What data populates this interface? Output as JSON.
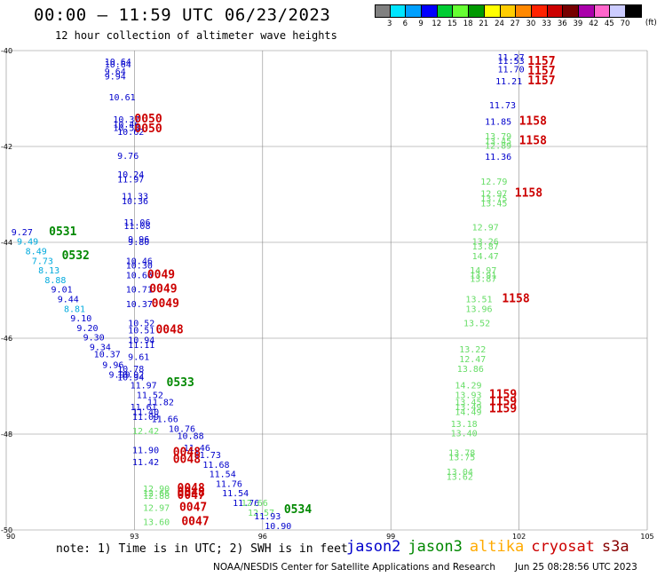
{
  "title": "00:00 – 11:59 UTC 06/23/2023",
  "subtitle": "12 hour collection of altimeter wave heights",
  "legend": {
    "unit": "(ft)",
    "colors": [
      "#808080",
      "#00e5ff",
      "#00a0ff",
      "#0000ff",
      "#00cc33",
      "#66ff33",
      "#009900",
      "#ffff00",
      "#ffcc00",
      "#ff8800",
      "#ff2200",
      "#cc0000",
      "#770000",
      "#aa00aa",
      "#ff66cc",
      "#ccccff",
      "#000000"
    ],
    "labels": [
      "3",
      "6",
      "9",
      "12",
      "15",
      "18",
      "21",
      "24",
      "27",
      "30",
      "33",
      "36",
      "39",
      "42",
      "45",
      "70"
    ]
  },
  "axes": {
    "x_ticks": [
      "90",
      "93",
      "96",
      "99",
      "102",
      "105"
    ],
    "y_ticks": [
      "-40",
      "-42",
      "-44",
      "-46",
      "-48",
      "-50"
    ]
  },
  "colors": {
    "jason2": "#0000cc",
    "jason3": "#008800",
    "altika": "#ffaa00",
    "cryosat": "#cc0000",
    "s3a": "#880000",
    "j3_light": "#66dd66",
    "cyan": "#00aadd",
    "grid": "#888888"
  },
  "note": "note: 1) Time is in UTC; 2) SWH is in feet",
  "satellites": [
    {
      "name": "jason2",
      "color": "#0000cc"
    },
    {
      "name": "jason3",
      "color": "#008800"
    },
    {
      "name": "altika",
      "color": "#ffaa00"
    },
    {
      "name": "cryosat",
      "color": "#cc0000"
    },
    {
      "name": "s3a",
      "color": "#880000"
    }
  ],
  "footer": "NOAA/NESDIS Center for Satellite Applications and Research",
  "footer_date": "Jun 25 08:28:56 UTC 2023",
  "map_data": {
    "lon_range": [
      90,
      105
    ],
    "lat_range": [
      -50,
      -40
    ],
    "points": [
      {
        "lon": 92.3,
        "lat": -40.3,
        "text": "10.64",
        "c": "#0000cc"
      },
      {
        "lon": 92.3,
        "lat": -40.35,
        "text": "10.64",
        "c": "#0000cc"
      },
      {
        "lon": 92.3,
        "lat": -40.5,
        "text": "9.64",
        "c": "#0000cc"
      },
      {
        "lon": 92.3,
        "lat": -40.6,
        "text": "9.94",
        "c": "#0000cc"
      },
      {
        "lon": 92.4,
        "lat": -41.04,
        "text": "10.61",
        "c": "#0000cc"
      },
      {
        "lon": 92.5,
        "lat": -41.5,
        "text": "10.37",
        "c": "#0000cc"
      },
      {
        "lon": 92.5,
        "lat": -41.6,
        "text": "10.46",
        "c": "#0000cc"
      },
      {
        "lon": 92.5,
        "lat": -41.68,
        "text": "10.55",
        "c": "#0000cc"
      },
      {
        "lon": 92.6,
        "lat": -41.76,
        "text": "10.62",
        "c": "#0000cc"
      },
      {
        "lon": 93.0,
        "lat": -41.5,
        "text": "0050",
        "c": "#cc0000",
        "big": true
      },
      {
        "lon": 93.0,
        "lat": -41.7,
        "text": "0050",
        "c": "#cc0000",
        "big": true
      },
      {
        "lon": 92.6,
        "lat": -42.26,
        "text": "9.76",
        "c": "#0000cc"
      },
      {
        "lon": 92.6,
        "lat": -42.65,
        "text": "10.24",
        "c": "#0000cc"
      },
      {
        "lon": 92.6,
        "lat": -42.75,
        "text": "11.97",
        "c": "#0000cc"
      },
      {
        "lon": 92.7,
        "lat": -43.1,
        "text": "11.33",
        "c": "#0000cc"
      },
      {
        "lon": 92.7,
        "lat": -43.2,
        "text": "10.36",
        "c": "#0000cc"
      },
      {
        "lon": 92.75,
        "lat": -43.65,
        "text": "11.06",
        "c": "#0000cc"
      },
      {
        "lon": 92.75,
        "lat": -43.72,
        "text": "11.08",
        "c": "#0000cc"
      },
      {
        "lon": 92.85,
        "lat": -44.0,
        "text": "9.96",
        "c": "#0000cc"
      },
      {
        "lon": 92.85,
        "lat": -44.06,
        "text": "9.80",
        "c": "#0000cc"
      },
      {
        "lon": 90.12,
        "lat": -43.85,
        "text": "9.27",
        "c": "#0000cc"
      },
      {
        "lon": 90.25,
        "lat": -44.05,
        "text": "9.49",
        "c": "#00aadd"
      },
      {
        "lon": 90.45,
        "lat": -44.25,
        "text": "8.49",
        "c": "#00aadd"
      },
      {
        "lon": 90.6,
        "lat": -44.45,
        "text": "7.73",
        "c": "#00aadd"
      },
      {
        "lon": 90.75,
        "lat": -44.65,
        "text": "8.13",
        "c": "#00aadd"
      },
      {
        "lon": 90.9,
        "lat": -44.85,
        "text": "8.88",
        "c": "#00aadd"
      },
      {
        "lon": 91.05,
        "lat": -45.05,
        "text": "9.01",
        "c": "#0000cc"
      },
      {
        "lon": 91.2,
        "lat": -45.25,
        "text": "9.44",
        "c": "#0000cc"
      },
      {
        "lon": 91.35,
        "lat": -45.45,
        "text": "8.81",
        "c": "#00aadd"
      },
      {
        "lon": 91.5,
        "lat": -45.65,
        "text": "9.10",
        "c": "#0000cc"
      },
      {
        "lon": 91.65,
        "lat": -45.85,
        "text": "9.20",
        "c": "#0000cc"
      },
      {
        "lon": 91.8,
        "lat": -46.05,
        "text": "9.30",
        "c": "#0000cc"
      },
      {
        "lon": 91.95,
        "lat": -46.25,
        "text": "9.34",
        "c": "#0000cc"
      },
      {
        "lon": 92.05,
        "lat": -46.4,
        "text": "10.37",
        "c": "#0000cc"
      },
      {
        "lon": 92.25,
        "lat": -46.62,
        "text": "9.96",
        "c": "#0000cc"
      },
      {
        "lon": 92.4,
        "lat": -46.82,
        "text": "9.99",
        "c": "#0000cc"
      },
      {
        "lon": 91.0,
        "lat": -43.85,
        "text": "0531",
        "c": "#008800",
        "big": true
      },
      {
        "lon": 91.3,
        "lat": -44.35,
        "text": "0532",
        "c": "#008800",
        "big": true
      },
      {
        "lon": 92.8,
        "lat": -44.45,
        "text": "10.46",
        "c": "#0000cc"
      },
      {
        "lon": 92.8,
        "lat": -44.55,
        "text": "10.30",
        "c": "#0000cc"
      },
      {
        "lon": 92.8,
        "lat": -44.75,
        "text": "10.66",
        "c": "#0000cc"
      },
      {
        "lon": 92.8,
        "lat": -45.05,
        "text": "10.71",
        "c": "#0000cc"
      },
      {
        "lon": 92.8,
        "lat": -45.35,
        "text": "10.37",
        "c": "#0000cc"
      },
      {
        "lon": 93.3,
        "lat": -44.75,
        "text": "0049",
        "c": "#cc0000",
        "big": true
      },
      {
        "lon": 93.35,
        "lat": -45.05,
        "text": "0049",
        "c": "#cc0000",
        "big": true
      },
      {
        "lon": 93.4,
        "lat": -45.35,
        "text": "0049",
        "c": "#cc0000",
        "big": true
      },
      {
        "lon": 92.85,
        "lat": -45.75,
        "text": "10.52",
        "c": "#0000cc"
      },
      {
        "lon": 92.85,
        "lat": -45.9,
        "text": "10.51",
        "c": "#0000cc"
      },
      {
        "lon": 93.5,
        "lat": -45.9,
        "text": "0048",
        "c": "#cc0000",
        "big": true
      },
      {
        "lon": 92.85,
        "lat": -46.1,
        "text": "10.94",
        "c": "#0000cc"
      },
      {
        "lon": 92.85,
        "lat": -46.2,
        "text": "11.11",
        "c": "#0000cc"
      },
      {
        "lon": 92.85,
        "lat": -46.45,
        "text": "9.61",
        "c": "#0000cc"
      },
      {
        "lon": 92.6,
        "lat": -46.7,
        "text": "10.78",
        "c": "#0000cc"
      },
      {
        "lon": 92.6,
        "lat": -46.82,
        "text": "10.92",
        "c": "#0000cc"
      },
      {
        "lon": 92.6,
        "lat": -46.88,
        "text": "10.94",
        "c": "#0000cc"
      },
      {
        "lon": 92.9,
        "lat": -47.05,
        "text": "11.97",
        "c": "#0000cc"
      },
      {
        "lon": 93.75,
        "lat": -47.0,
        "text": "0533",
        "c": "#008800",
        "big": true
      },
      {
        "lon": 93.05,
        "lat": -47.25,
        "text": "11.52",
        "c": "#0000cc"
      },
      {
        "lon": 93.3,
        "lat": -47.4,
        "text": "11.82",
        "c": "#0000cc"
      },
      {
        "lon": 92.9,
        "lat": -47.5,
        "text": "11.61",
        "c": "#0000cc"
      },
      {
        "lon": 92.95,
        "lat": -47.6,
        "text": "11.40",
        "c": "#0000cc"
      },
      {
        "lon": 92.95,
        "lat": -47.7,
        "text": "11.09",
        "c": "#0000cc"
      },
      {
        "lon": 93.4,
        "lat": -47.75,
        "text": "11.66",
        "c": "#0000cc"
      },
      {
        "lon": 92.95,
        "lat": -48.0,
        "text": "12.42",
        "c": "#66dd66"
      },
      {
        "lon": 93.8,
        "lat": -47.95,
        "text": "10.76",
        "c": "#0000cc"
      },
      {
        "lon": 94.0,
        "lat": -48.1,
        "text": "10.88",
        "c": "#0000cc"
      },
      {
        "lon": 94.15,
        "lat": -48.35,
        "text": "11.46",
        "c": "#0000cc"
      },
      {
        "lon": 94.4,
        "lat": -48.5,
        "text": "11.73",
        "c": "#0000cc"
      },
      {
        "lon": 94.6,
        "lat": -48.7,
        "text": "11.68",
        "c": "#0000cc"
      },
      {
        "lon": 94.75,
        "lat": -48.9,
        "text": "11.54",
        "c": "#0000cc"
      },
      {
        "lon": 94.9,
        "lat": -49.1,
        "text": "11.76",
        "c": "#0000cc"
      },
      {
        "lon": 95.05,
        "lat": -49.3,
        "text": "11.54",
        "c": "#0000cc"
      },
      {
        "lon": 95.3,
        "lat": -49.5,
        "text": "11.76",
        "c": "#0000cc"
      },
      {
        "lon": 92.95,
        "lat": -48.4,
        "text": "11.90",
        "c": "#0000cc"
      },
      {
        "lon": 92.95,
        "lat": -48.65,
        "text": "11.42",
        "c": "#0000cc"
      },
      {
        "lon": 93.9,
        "lat": -48.45,
        "text": "0048",
        "c": "#cc0000",
        "big": true
      },
      {
        "lon": 93.9,
        "lat": -48.6,
        "text": "0048",
        "c": "#cc0000",
        "big": true
      },
      {
        "lon": 93.2,
        "lat": -49.2,
        "text": "12.90",
        "c": "#66dd66"
      },
      {
        "lon": 93.2,
        "lat": -49.3,
        "text": "12.66",
        "c": "#66dd66"
      },
      {
        "lon": 93.2,
        "lat": -49.35,
        "text": "12.88",
        "c": "#66dd66"
      },
      {
        "lon": 93.2,
        "lat": -49.6,
        "text": "12.97",
        "c": "#66dd66"
      },
      {
        "lon": 93.2,
        "lat": -49.9,
        "text": "13.60",
        "c": "#66dd66"
      },
      {
        "lon": 94.0,
        "lat": -49.2,
        "text": "0048",
        "c": "#cc0000",
        "big": true
      },
      {
        "lon": 94.0,
        "lat": -49.3,
        "text": "0048",
        "c": "#cc0000",
        "big": true
      },
      {
        "lon": 94.0,
        "lat": -49.35,
        "text": "0047",
        "c": "#cc0000",
        "big": true
      },
      {
        "lon": 94.05,
        "lat": -49.6,
        "text": "0047",
        "c": "#cc0000",
        "big": true
      },
      {
        "lon": 94.1,
        "lat": -49.9,
        "text": "0047",
        "c": "#cc0000",
        "big": true
      },
      {
        "lon": 95.5,
        "lat": -49.5,
        "text": "12.66",
        "c": "#66dd66"
      },
      {
        "lon": 95.65,
        "lat": -49.7,
        "text": "12.57",
        "c": "#66dd66"
      },
      {
        "lon": 95.8,
        "lat": -49.78,
        "text": "11.93",
        "c": "#0000cc"
      },
      {
        "lon": 96.05,
        "lat": -49.98,
        "text": "10.90",
        "c": "#0000cc"
      },
      {
        "lon": 96.5,
        "lat": -49.65,
        "text": "0534",
        "c": "#008800",
        "big": true
      },
      {
        "lon": 101.5,
        "lat": -40.2,
        "text": "11.27",
        "c": "#0000cc"
      },
      {
        "lon": 101.5,
        "lat": -40.28,
        "text": "11.53",
        "c": "#0000cc"
      },
      {
        "lon": 101.5,
        "lat": -40.45,
        "text": "11.70",
        "c": "#0000cc"
      },
      {
        "lon": 101.45,
        "lat": -40.7,
        "text": "11.21",
        "c": "#0000cc"
      },
      {
        "lon": 102.2,
        "lat": -40.3,
        "text": "1157",
        "c": "#cc0000",
        "big": true
      },
      {
        "lon": 102.2,
        "lat": -40.5,
        "text": "1157",
        "c": "#cc0000",
        "big": true
      },
      {
        "lon": 102.2,
        "lat": -40.7,
        "text": "1157",
        "c": "#cc0000",
        "big": true
      },
      {
        "lon": 101.3,
        "lat": -41.2,
        "text": "11.73",
        "c": "#0000cc"
      },
      {
        "lon": 101.2,
        "lat": -41.55,
        "text": "11.85",
        "c": "#0000cc"
      },
      {
        "lon": 102.0,
        "lat": -41.55,
        "text": "1158",
        "c": "#cc0000",
        "big": true
      },
      {
        "lon": 101.2,
        "lat": -41.85,
        "text": "13.79",
        "c": "#66dd66"
      },
      {
        "lon": 101.2,
        "lat": -41.95,
        "text": "13.45",
        "c": "#66dd66"
      },
      {
        "lon": 102.0,
        "lat": -41.95,
        "text": "1158",
        "c": "#cc0000",
        "big": true
      },
      {
        "lon": 101.2,
        "lat": -42.05,
        "text": "12.89",
        "c": "#66dd66"
      },
      {
        "lon": 101.2,
        "lat": -42.28,
        "text": "11.36",
        "c": "#0000cc"
      },
      {
        "lon": 101.1,
        "lat": -42.8,
        "text": "12.79",
        "c": "#66dd66"
      },
      {
        "lon": 101.1,
        "lat": -43.05,
        "text": "12.97",
        "c": "#66dd66"
      },
      {
        "lon": 101.1,
        "lat": -43.15,
        "text": "13.75",
        "c": "#66dd66"
      },
      {
        "lon": 101.1,
        "lat": -43.25,
        "text": "13.45",
        "c": "#66dd66"
      },
      {
        "lon": 101.9,
        "lat": -43.05,
        "text": "1158",
        "c": "#cc0000",
        "big": true
      },
      {
        "lon": 100.9,
        "lat": -43.75,
        "text": "12.97",
        "c": "#66dd66"
      },
      {
        "lon": 100.9,
        "lat": -44.05,
        "text": "13.26",
        "c": "#66dd66"
      },
      {
        "lon": 100.9,
        "lat": -44.15,
        "text": "13.87",
        "c": "#66dd66"
      },
      {
        "lon": 100.9,
        "lat": -44.35,
        "text": "14.47",
        "c": "#66dd66"
      },
      {
        "lon": 100.85,
        "lat": -44.65,
        "text": "14.97",
        "c": "#66dd66"
      },
      {
        "lon": 100.85,
        "lat": -44.75,
        "text": "13.91",
        "c": "#66dd66"
      },
      {
        "lon": 100.85,
        "lat": -44.82,
        "text": "13.87",
        "c": "#66dd66"
      },
      {
        "lon": 100.75,
        "lat": -45.25,
        "text": "13.51",
        "c": "#66dd66"
      },
      {
        "lon": 100.75,
        "lat": -45.45,
        "text": "13.96",
        "c": "#66dd66"
      },
      {
        "lon": 101.6,
        "lat": -45.25,
        "text": "1158",
        "c": "#cc0000",
        "big": true
      },
      {
        "lon": 100.7,
        "lat": -45.75,
        "text": "13.52",
        "c": "#66dd66"
      },
      {
        "lon": 100.6,
        "lat": -46.3,
        "text": "13.22",
        "c": "#66dd66"
      },
      {
        "lon": 100.6,
        "lat": -46.5,
        "text": "12.47",
        "c": "#66dd66"
      },
      {
        "lon": 100.55,
        "lat": -46.7,
        "text": "13.86",
        "c": "#66dd66"
      },
      {
        "lon": 100.5,
        "lat": -47.05,
        "text": "14.29",
        "c": "#66dd66"
      },
      {
        "lon": 100.5,
        "lat": -47.25,
        "text": "13.93",
        "c": "#66dd66"
      },
      {
        "lon": 100.5,
        "lat": -47.4,
        "text": "13.45",
        "c": "#66dd66"
      },
      {
        "lon": 100.5,
        "lat": -47.5,
        "text": "13.49",
        "c": "#66dd66"
      },
      {
        "lon": 100.5,
        "lat": -47.6,
        "text": "14.49",
        "c": "#66dd66"
      },
      {
        "lon": 101.3,
        "lat": -47.25,
        "text": "1159",
        "c": "#cc0000",
        "big": true
      },
      {
        "lon": 101.3,
        "lat": -47.4,
        "text": "1159",
        "c": "#cc0000",
        "big": true
      },
      {
        "lon": 101.3,
        "lat": -47.55,
        "text": "1159",
        "c": "#cc0000",
        "big": true
      },
      {
        "lon": 100.4,
        "lat": -47.85,
        "text": "13.18",
        "c": "#66dd66"
      },
      {
        "lon": 100.4,
        "lat": -48.05,
        "text": "13.40",
        "c": "#66dd66"
      },
      {
        "lon": 100.35,
        "lat": -48.45,
        "text": "13.78",
        "c": "#66dd66"
      },
      {
        "lon": 100.35,
        "lat": -48.55,
        "text": "13.75",
        "c": "#66dd66"
      },
      {
        "lon": 100.3,
        "lat": -48.85,
        "text": "13.04",
        "c": "#66dd66"
      },
      {
        "lon": 100.3,
        "lat": -48.95,
        "text": "13.62",
        "c": "#66dd66"
      }
    ]
  }
}
